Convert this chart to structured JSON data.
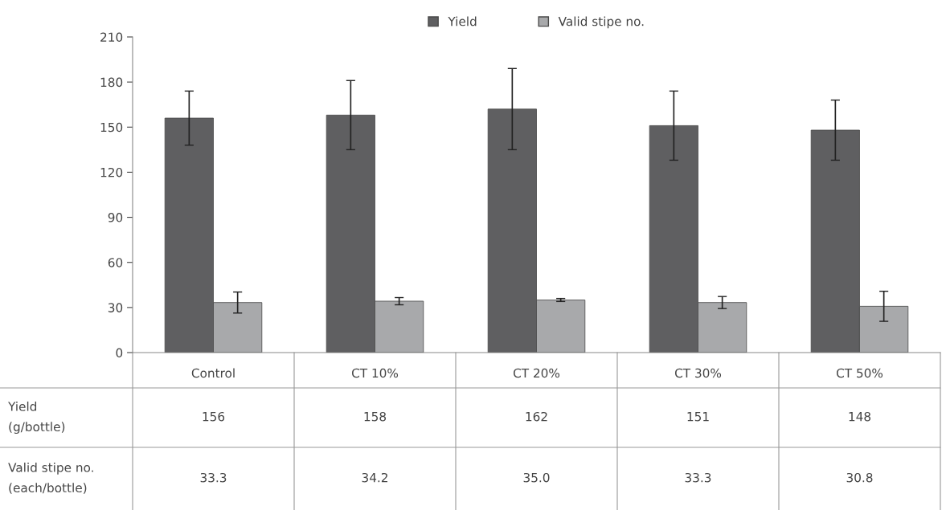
{
  "chart_data": {
    "type": "bar",
    "categories": [
      "Control",
      "CT 10%",
      "CT 20%",
      "CT 30%",
      "CT 50%"
    ],
    "series": [
      {
        "name": "Yield",
        "color": "#5f5f61",
        "values": [
          156,
          158,
          162,
          151,
          148
        ],
        "errors": [
          18,
          23,
          27,
          23,
          20
        ],
        "value_labels": [
          "156",
          "158",
          "162",
          "151",
          "148"
        ]
      },
      {
        "name": "Valid stipe no.",
        "color": "#a8a9ab",
        "values": [
          33.3,
          34.2,
          35.0,
          33.3,
          30.8
        ],
        "errors": [
          7,
          2.4,
          1,
          4,
          10
        ],
        "value_labels": [
          "33.3",
          "34.2",
          "35.0",
          "33.3",
          "30.8"
        ]
      }
    ],
    "annotations": [
      "Yield\n(g/bottle)",
      "Valid stipe no.\n(each/bottle)"
    ],
    "ylim": [
      0,
      210
    ],
    "yticks": [
      0,
      30,
      60,
      90,
      120,
      150,
      180,
      210
    ],
    "legend": "top",
    "grid": false
  }
}
